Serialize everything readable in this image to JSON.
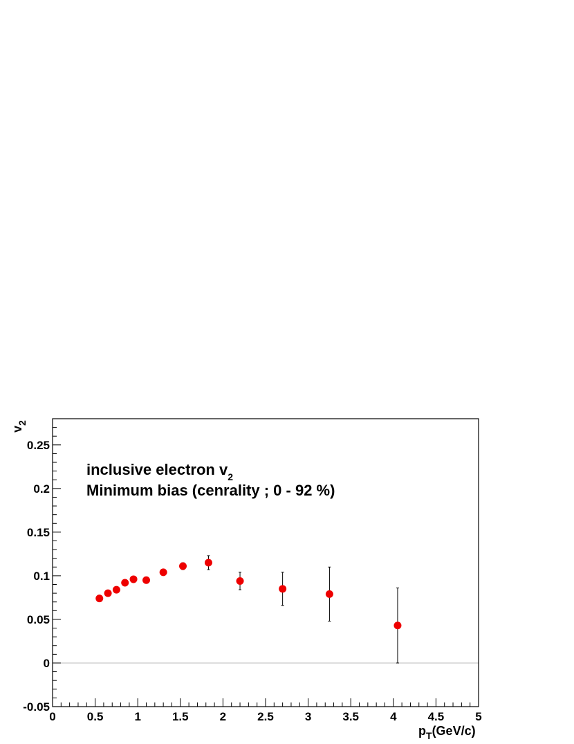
{
  "chart_data": {
    "type": "scatter",
    "xlabel_main": "p",
    "xlabel_sub": "T",
    "xlabel_rest": "(GeV/c)",
    "ylabel_main": "v",
    "ylabel_sub": "2",
    "xlim": [
      0,
      5
    ],
    "ylim": [
      -0.05,
      0.28
    ],
    "xticks": [
      "0",
      "0.5",
      "1",
      "1.5",
      "2",
      "2.5",
      "3",
      "3.5",
      "4",
      "4.5",
      "5"
    ],
    "yticks": [
      "-0.05",
      "0",
      "0.05",
      "0.1",
      "0.15",
      "0.2",
      "0.25"
    ],
    "annotation_line1_main": "inclusive electron v",
    "annotation_line1_sub": "2",
    "annotation_line2": "Minimum bias (cenrality ; 0 - 92 %)",
    "marker_color": "#ee0000",
    "zero_line": true,
    "points": [
      {
        "x": 0.55,
        "y": 0.074,
        "err": 0.002
      },
      {
        "x": 0.65,
        "y": 0.08,
        "err": 0.002
      },
      {
        "x": 0.75,
        "y": 0.084,
        "err": 0.002
      },
      {
        "x": 0.85,
        "y": 0.092,
        "err": 0.002
      },
      {
        "x": 0.95,
        "y": 0.096,
        "err": 0.002
      },
      {
        "x": 1.1,
        "y": 0.095,
        "err": 0.002
      },
      {
        "x": 1.3,
        "y": 0.104,
        "err": 0.002
      },
      {
        "x": 1.53,
        "y": 0.111,
        "err": 0.004
      },
      {
        "x": 1.83,
        "y": 0.115,
        "err": 0.008
      },
      {
        "x": 2.2,
        "y": 0.094,
        "err": 0.01
      },
      {
        "x": 2.7,
        "y": 0.085,
        "err": 0.019
      },
      {
        "x": 3.25,
        "y": 0.079,
        "err": 0.031
      },
      {
        "x": 4.05,
        "y": 0.043,
        "err": 0.043
      }
    ]
  }
}
